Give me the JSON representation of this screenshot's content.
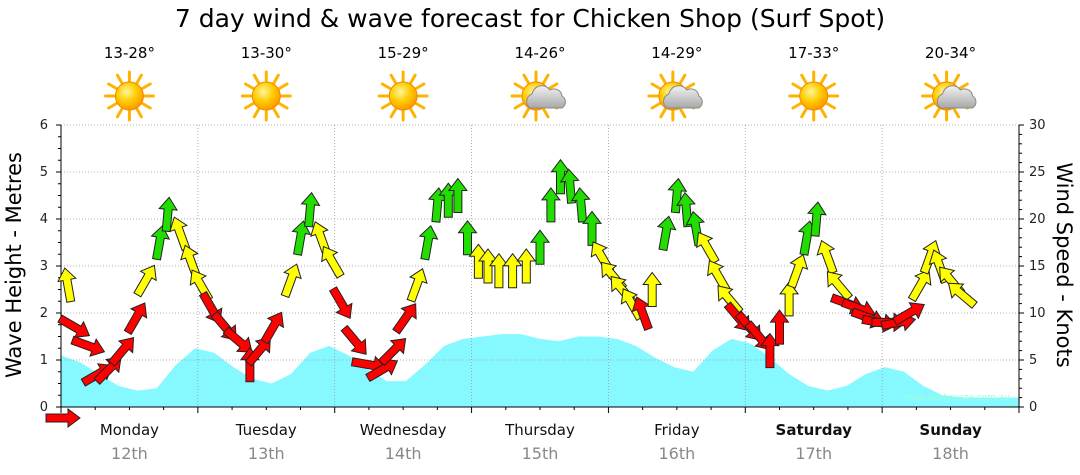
{
  "chart_data": {
    "type": "line",
    "title": "7 day wind & wave forecast for Chicken Shop  (Surf Spot)",
    "ylabel": "Wave Height - Metres",
    "y2label": "Wind Speed - Knots",
    "ylim": [
      0,
      6
    ],
    "y2lim": [
      0,
      30
    ],
    "yticks": [
      "0",
      "1",
      "2",
      "3",
      "4",
      "5",
      "6"
    ],
    "y2ticks": [
      "0",
      "5",
      "10",
      "15",
      "20",
      "25",
      "30"
    ],
    "grid": true,
    "watermark": "www.seabreeze.com.au",
    "days": [
      {
        "name": "Monday",
        "date": "12th",
        "temp": "13-28°",
        "icon": "sun-icon",
        "bold": false
      },
      {
        "name": "Tuesday",
        "date": "13th",
        "temp": "13-30°",
        "icon": "sun-icon",
        "bold": false
      },
      {
        "name": "Wednesday",
        "date": "14th",
        "temp": "15-29°",
        "icon": "sun-icon",
        "bold": false
      },
      {
        "name": "Thursday",
        "date": "15th",
        "temp": "14-26°",
        "icon": "sun-cloud-icon",
        "bold": false
      },
      {
        "name": "Friday",
        "date": "16th",
        "temp": "14-29°",
        "icon": "sun-cloud-icon",
        "bold": false
      },
      {
        "name": "Saturday",
        "date": "17th",
        "temp": "17-33°",
        "icon": "sun-icon",
        "bold": true
      },
      {
        "name": "Sunday",
        "date": "18th",
        "temp": "20-34°",
        "icon": "sun-cloud-icon",
        "bold": true
      }
    ],
    "wave_series": {
      "name": "Wave Height",
      "color": "#7ff8ff",
      "values": [
        1.1,
        0.95,
        0.7,
        0.45,
        0.35,
        0.4,
        0.9,
        1.25,
        1.15,
        0.85,
        0.6,
        0.5,
        0.7,
        1.15,
        1.3,
        1.1,
        0.8,
        0.55,
        0.55,
        0.9,
        1.3,
        1.45,
        1.5,
        1.55,
        1.55,
        1.45,
        1.4,
        1.5,
        1.5,
        1.45,
        1.3,
        1.05,
        0.85,
        0.75,
        1.2,
        1.45,
        1.35,
        1.05,
        0.7,
        0.45,
        0.35,
        0.45,
        0.7,
        0.85,
        0.75,
        0.45,
        0.25,
        0.2,
        0.2,
        0.2,
        0.2
      ]
    },
    "wind_series": {
      "name": "Wind Speed",
      "unit": "knots",
      "color_scale": {
        "red": "#ff0000",
        "yellow": "#ffff00",
        "green": "#22dd00"
      },
      "points": [
        {
          "t": 0.05,
          "v": 13,
          "dir": 350,
          "color": "yellow"
        },
        {
          "t": 0.1,
          "v": 8.5,
          "dir": 120,
          "color": "red"
        },
        {
          "t": 0.2,
          "v": 6.5,
          "dir": 110,
          "color": "red"
        },
        {
          "t": 0.27,
          "v": 3.5,
          "dir": 60,
          "color": "red"
        },
        {
          "t": 0.35,
          "v": 4,
          "dir": 45,
          "color": "red"
        },
        {
          "t": 0.45,
          "v": 6,
          "dir": 40,
          "color": "red"
        },
        {
          "t": 0.55,
          "v": 9.5,
          "dir": 30,
          "color": "red"
        },
        {
          "t": 0.62,
          "v": 13.5,
          "dir": 30,
          "color": "yellow"
        },
        {
          "t": 0.72,
          "v": 17.5,
          "dir": 10,
          "color": "green"
        },
        {
          "t": 0.78,
          "v": 20.5,
          "dir": 5,
          "color": "green"
        },
        {
          "t": 0.87,
          "v": 18.5,
          "dir": 340,
          "color": "yellow"
        },
        {
          "t": 0.95,
          "v": 15.5,
          "dir": 340,
          "color": "yellow"
        },
        {
          "t": 1.02,
          "v": 13,
          "dir": 330,
          "color": "yellow"
        },
        {
          "t": 1.1,
          "v": 10.5,
          "dir": 150,
          "color": "red"
        },
        {
          "t": 1.2,
          "v": 8.5,
          "dir": 140,
          "color": "red"
        },
        {
          "t": 1.3,
          "v": 7,
          "dir": 130,
          "color": "red"
        },
        {
          "t": 1.38,
          "v": 4.5,
          "dir": 0,
          "color": "red"
        },
        {
          "t": 1.45,
          "v": 6,
          "dir": 40,
          "color": "red"
        },
        {
          "t": 1.55,
          "v": 8.5,
          "dir": 30,
          "color": "red"
        },
        {
          "t": 1.68,
          "v": 13.5,
          "dir": 20,
          "color": "yellow"
        },
        {
          "t": 1.75,
          "v": 18,
          "dir": 10,
          "color": "green"
        },
        {
          "t": 1.82,
          "v": 21,
          "dir": 5,
          "color": "green"
        },
        {
          "t": 1.9,
          "v": 18,
          "dir": 340,
          "color": "yellow"
        },
        {
          "t": 1.98,
          "v": 15.5,
          "dir": 330,
          "color": "yellow"
        },
        {
          "t": 2.05,
          "v": 11,
          "dir": 150,
          "color": "red"
        },
        {
          "t": 2.15,
          "v": 7,
          "dir": 140,
          "color": "red"
        },
        {
          "t": 2.25,
          "v": 4.5,
          "dir": 100,
          "color": "red"
        },
        {
          "t": 2.35,
          "v": 4,
          "dir": 60,
          "color": "red"
        },
        {
          "t": 2.43,
          "v": 6,
          "dir": 45,
          "color": "red"
        },
        {
          "t": 2.52,
          "v": 9.5,
          "dir": 35,
          "color": "red"
        },
        {
          "t": 2.6,
          "v": 13,
          "dir": 20,
          "color": "yellow"
        },
        {
          "t": 2.68,
          "v": 17.5,
          "dir": 10,
          "color": "green"
        },
        {
          "t": 2.75,
          "v": 21.5,
          "dir": 5,
          "color": "green"
        },
        {
          "t": 2.83,
          "v": 22,
          "dir": 0,
          "color": "green"
        },
        {
          "t": 2.9,
          "v": 22.5,
          "dir": 0,
          "color": "green"
        },
        {
          "t": 2.97,
          "v": 18,
          "dir": 0,
          "color": "green"
        },
        {
          "t": 3.05,
          "v": 15.5,
          "dir": 0,
          "color": "yellow"
        },
        {
          "t": 3.12,
          "v": 15,
          "dir": 0,
          "color": "yellow"
        },
        {
          "t": 3.2,
          "v": 14.5,
          "dir": 0,
          "color": "yellow"
        },
        {
          "t": 3.3,
          "v": 14.5,
          "dir": 0,
          "color": "yellow"
        },
        {
          "t": 3.4,
          "v": 15,
          "dir": 0,
          "color": "yellow"
        },
        {
          "t": 3.5,
          "v": 17,
          "dir": 0,
          "color": "green"
        },
        {
          "t": 3.58,
          "v": 21.5,
          "dir": 0,
          "color": "green"
        },
        {
          "t": 3.65,
          "v": 24.5,
          "dir": 0,
          "color": "green"
        },
        {
          "t": 3.72,
          "v": 23.5,
          "dir": 355,
          "color": "green"
        },
        {
          "t": 3.8,
          "v": 21.5,
          "dir": 355,
          "color": "green"
        },
        {
          "t": 3.88,
          "v": 19,
          "dir": 0,
          "color": "green"
        },
        {
          "t": 3.95,
          "v": 16,
          "dir": 330,
          "color": "yellow"
        },
        {
          "t": 4.03,
          "v": 14,
          "dir": 320,
          "color": "yellow"
        },
        {
          "t": 4.1,
          "v": 12.5,
          "dir": 320,
          "color": "yellow"
        },
        {
          "t": 4.17,
          "v": 11,
          "dir": 330,
          "color": "yellow"
        },
        {
          "t": 4.25,
          "v": 10,
          "dir": 340,
          "color": "red"
        },
        {
          "t": 4.32,
          "v": 12.5,
          "dir": 0,
          "color": "yellow"
        },
        {
          "t": 4.42,
          "v": 18.5,
          "dir": 10,
          "color": "green"
        },
        {
          "t": 4.5,
          "v": 22.5,
          "dir": 5,
          "color": "green"
        },
        {
          "t": 4.57,
          "v": 21,
          "dir": 355,
          "color": "green"
        },
        {
          "t": 4.64,
          "v": 19,
          "dir": 350,
          "color": "green"
        },
        {
          "t": 4.72,
          "v": 17,
          "dir": 330,
          "color": "yellow"
        },
        {
          "t": 4.8,
          "v": 14,
          "dir": 330,
          "color": "yellow"
        },
        {
          "t": 4.88,
          "v": 11.5,
          "dir": 320,
          "color": "yellow"
        },
        {
          "t": 4.95,
          "v": 9.5,
          "dir": 140,
          "color": "red"
        },
        {
          "t": 5.03,
          "v": 8.5,
          "dir": 140,
          "color": "red"
        },
        {
          "t": 5.1,
          "v": 7.5,
          "dir": 140,
          "color": "red"
        },
        {
          "t": 5.18,
          "v": 6,
          "dir": 0,
          "color": "red"
        },
        {
          "t": 5.25,
          "v": 8.5,
          "dir": 0,
          "color": "red"
        },
        {
          "t": 5.32,
          "v": 11.5,
          "dir": 0,
          "color": "yellow"
        },
        {
          "t": 5.38,
          "v": 14.5,
          "dir": 20,
          "color": "yellow"
        },
        {
          "t": 5.45,
          "v": 18,
          "dir": 10,
          "color": "green"
        },
        {
          "t": 5.52,
          "v": 20,
          "dir": 5,
          "color": "green"
        },
        {
          "t": 5.6,
          "v": 16,
          "dir": 340,
          "color": "yellow"
        },
        {
          "t": 5.68,
          "v": 13,
          "dir": 320,
          "color": "yellow"
        },
        {
          "t": 5.75,
          "v": 11,
          "dir": 110,
          "color": "red"
        },
        {
          "t": 5.83,
          "v": 10.5,
          "dir": 110,
          "color": "red"
        },
        {
          "t": 5.9,
          "v": 9.5,
          "dir": 110,
          "color": "red"
        },
        {
          "t": 5.98,
          "v": 9,
          "dir": 100,
          "color": "red"
        },
        {
          "t": 6.05,
          "v": 9,
          "dir": 90,
          "color": "red"
        },
        {
          "t": 6.12,
          "v": 9,
          "dir": 80,
          "color": "red"
        },
        {
          "t": 6.2,
          "v": 10,
          "dir": 60,
          "color": "red"
        },
        {
          "t": 6.28,
          "v": 13,
          "dir": 30,
          "color": "yellow"
        },
        {
          "t": 6.35,
          "v": 16,
          "dir": 20,
          "color": "yellow"
        },
        {
          "t": 6.42,
          "v": 15,
          "dir": 340,
          "color": "yellow"
        },
        {
          "t": 6.5,
          "v": 13.5,
          "dir": 320,
          "color": "yellow"
        },
        {
          "t": 6.58,
          "v": 12,
          "dir": 310,
          "color": "yellow"
        }
      ]
    },
    "current_wind_marker": {
      "dir": 90,
      "color": "red"
    }
  }
}
